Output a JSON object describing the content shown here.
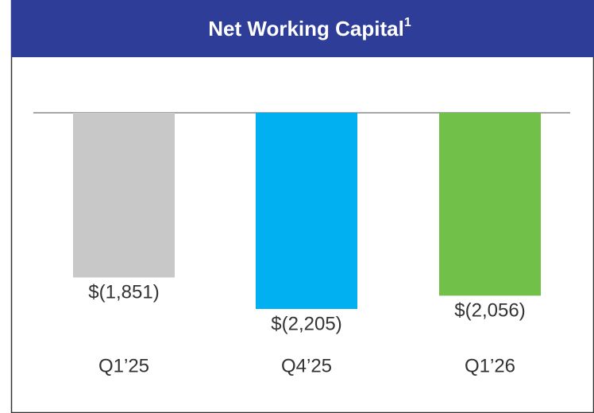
{
  "chart_data": {
    "type": "bar",
    "title": "Net Working Capital",
    "title_footnote": "1",
    "categories": [
      "Q1’25",
      "Q4’25",
      "Q1’26"
    ],
    "values": [
      -1851,
      -2205,
      -2056
    ],
    "value_labels": [
      "$(1,851)",
      "$(2,205)",
      "$(2,056)"
    ],
    "colors": [
      "#c8c8c8",
      "#00b0f0",
      "#70c04a"
    ]
  }
}
